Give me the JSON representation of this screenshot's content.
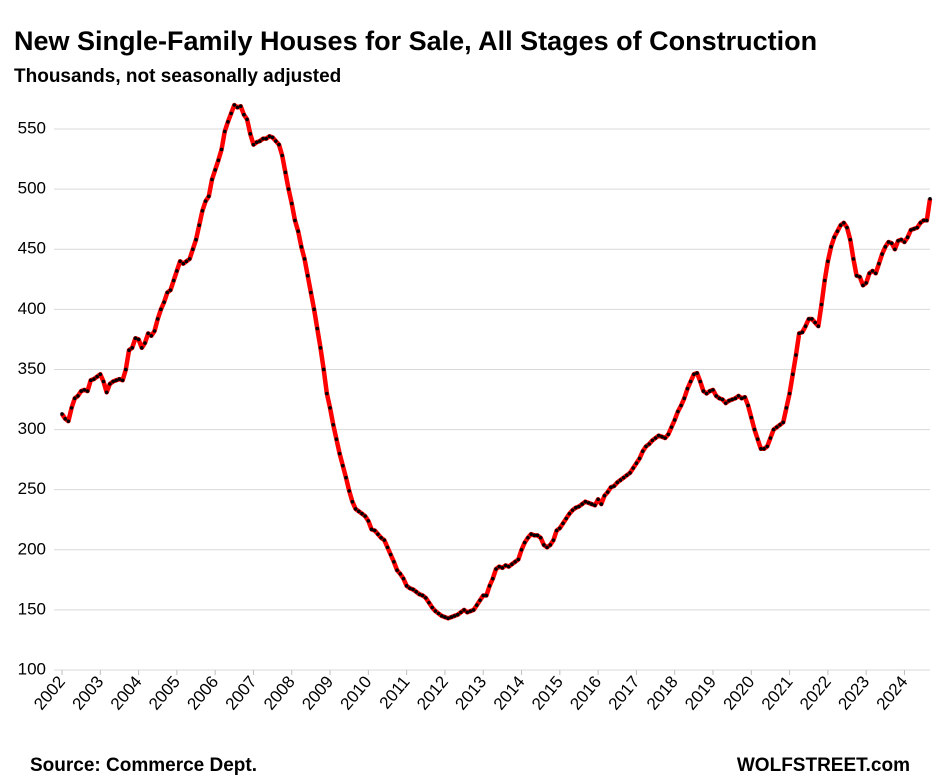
{
  "chart_data": {
    "type": "line",
    "title": "New Single-Family Houses for Sale, All Stages of Construction",
    "subtitle": "Thousands,  not seasonally adjusted",
    "source": "Source: Commerce Dept.",
    "credit": "WOLFSTREET.com",
    "categories": [
      "2002",
      null,
      null,
      null,
      null,
      null,
      null,
      null,
      null,
      null,
      null,
      null,
      "2003",
      null,
      null,
      null,
      null,
      null,
      null,
      null,
      null,
      null,
      null,
      null,
      "2004",
      null,
      null,
      null,
      null,
      null,
      null,
      null,
      null,
      null,
      null,
      null,
      "2005",
      null,
      null,
      null,
      null,
      null,
      null,
      null,
      null,
      null,
      null,
      null,
      "2006",
      null,
      null,
      null,
      null,
      null,
      null,
      null,
      null,
      null,
      null,
      null,
      "2007",
      null,
      null,
      null,
      null,
      null,
      null,
      null,
      null,
      null,
      null,
      null,
      "2008",
      null,
      null,
      null,
      null,
      null,
      null,
      null,
      null,
      null,
      null,
      null,
      "2009",
      null,
      null,
      null,
      null,
      null,
      null,
      null,
      null,
      null,
      null,
      null,
      "2010",
      null,
      null,
      null,
      null,
      null,
      null,
      null,
      null,
      null,
      null,
      null,
      "2011",
      null,
      null,
      null,
      null,
      null,
      null,
      null,
      null,
      null,
      null,
      null,
      "2012",
      null,
      null,
      null,
      null,
      null,
      null,
      null,
      null,
      null,
      null,
      null,
      "2013",
      null,
      null,
      null,
      null,
      null,
      null,
      null,
      null,
      null,
      null,
      null,
      "2014",
      null,
      null,
      null,
      null,
      null,
      null,
      null,
      null,
      null,
      null,
      null,
      "2015",
      null,
      null,
      null,
      null,
      null,
      null,
      null,
      null,
      null,
      null,
      null,
      "2016",
      null,
      null,
      null,
      null,
      null,
      null,
      null,
      null,
      null,
      null,
      null,
      "2017",
      null,
      null,
      null,
      null,
      null,
      null,
      null,
      null,
      null,
      null,
      null,
      "2018",
      null,
      null,
      null,
      null,
      null,
      null,
      null,
      null,
      null,
      null,
      null,
      "2019",
      null,
      null,
      null,
      null,
      null,
      null,
      null,
      null,
      null,
      null,
      null,
      "2020",
      null,
      null,
      null,
      null,
      null,
      null,
      null,
      null,
      null,
      null,
      null,
      "2021",
      null,
      null,
      null,
      null,
      null,
      null,
      null,
      null,
      null,
      null,
      null,
      "2022",
      null,
      null,
      null,
      null,
      null,
      null,
      null,
      null,
      null,
      null,
      null,
      "2023",
      null,
      null,
      null,
      null,
      null,
      null,
      null,
      null,
      null,
      null,
      null,
      "2024",
      null,
      null,
      null,
      null,
      null,
      null,
      null,
      null
    ],
    "series": [
      {
        "color": "#ff0000",
        "marker_color": "#000000",
        "values": [
          313,
          309,
          307,
          318,
          326,
          328,
          332,
          333,
          332,
          341,
          342,
          344,
          346,
          340,
          331,
          338,
          340,
          341,
          342,
          341,
          350,
          366,
          368,
          376,
          375,
          368,
          372,
          380,
          378,
          382,
          392,
          400,
          406,
          414,
          416,
          424,
          432,
          440,
          438,
          440,
          442,
          450,
          458,
          470,
          482,
          490,
          494,
          508,
          516,
          524,
          533,
          548,
          556,
          563,
          570,
          568,
          569,
          562,
          558,
          546,
          537,
          539,
          540,
          542,
          542,
          544,
          543,
          540,
          537,
          528,
          514,
          500,
          488,
          474,
          465,
          452,
          442,
          428,
          414,
          400,
          384,
          368,
          350,
          330,
          318,
          304,
          292,
          280,
          270,
          260,
          249,
          240,
          234,
          232,
          230,
          228,
          224,
          217,
          216,
          213,
          210,
          208,
          202,
          196,
          190,
          183,
          180,
          176,
          170,
          168,
          167,
          165,
          163,
          162,
          160,
          156,
          152,
          149,
          147,
          145,
          144,
          143,
          144,
          145,
          146,
          148,
          150,
          148,
          149,
          150,
          154,
          158,
          162,
          162,
          170,
          176,
          184,
          186,
          185,
          187,
          186,
          188,
          190,
          192,
          200,
          206,
          210,
          213,
          212,
          212,
          210,
          204,
          202,
          204,
          208,
          216,
          218,
          222,
          226,
          230,
          233,
          235,
          236,
          238,
          240,
          239,
          238,
          237,
          242,
          238,
          245,
          248,
          252,
          253,
          256,
          258,
          260,
          262,
          264,
          268,
          272,
          276,
          282,
          286,
          288,
          291,
          293,
          295,
          294,
          293,
          296,
          302,
          308,
          315,
          320,
          326,
          334,
          340,
          346,
          347,
          340,
          332,
          330,
          332,
          333,
          328,
          326,
          325,
          322,
          324,
          325,
          326,
          328,
          326,
          327,
          320,
          310,
          300,
          292,
          284,
          284,
          286,
          293,
          300,
          302,
          304,
          306,
          318,
          330,
          346,
          362,
          380,
          381,
          386,
          392,
          392,
          389,
          386,
          404,
          424,
          440,
          452,
          460,
          465,
          470,
          472,
          468,
          458,
          442,
          428,
          427,
          420,
          422,
          430,
          432,
          430,
          438,
          446,
          452,
          456,
          455,
          450,
          457,
          458,
          456,
          460,
          466,
          467,
          468,
          472,
          474,
          474,
          492
        ]
      }
    ],
    "ylim": [
      100,
      570
    ],
    "yticks": [
      100,
      150,
      200,
      250,
      300,
      350,
      400,
      450,
      500,
      550
    ],
    "grid": true
  }
}
